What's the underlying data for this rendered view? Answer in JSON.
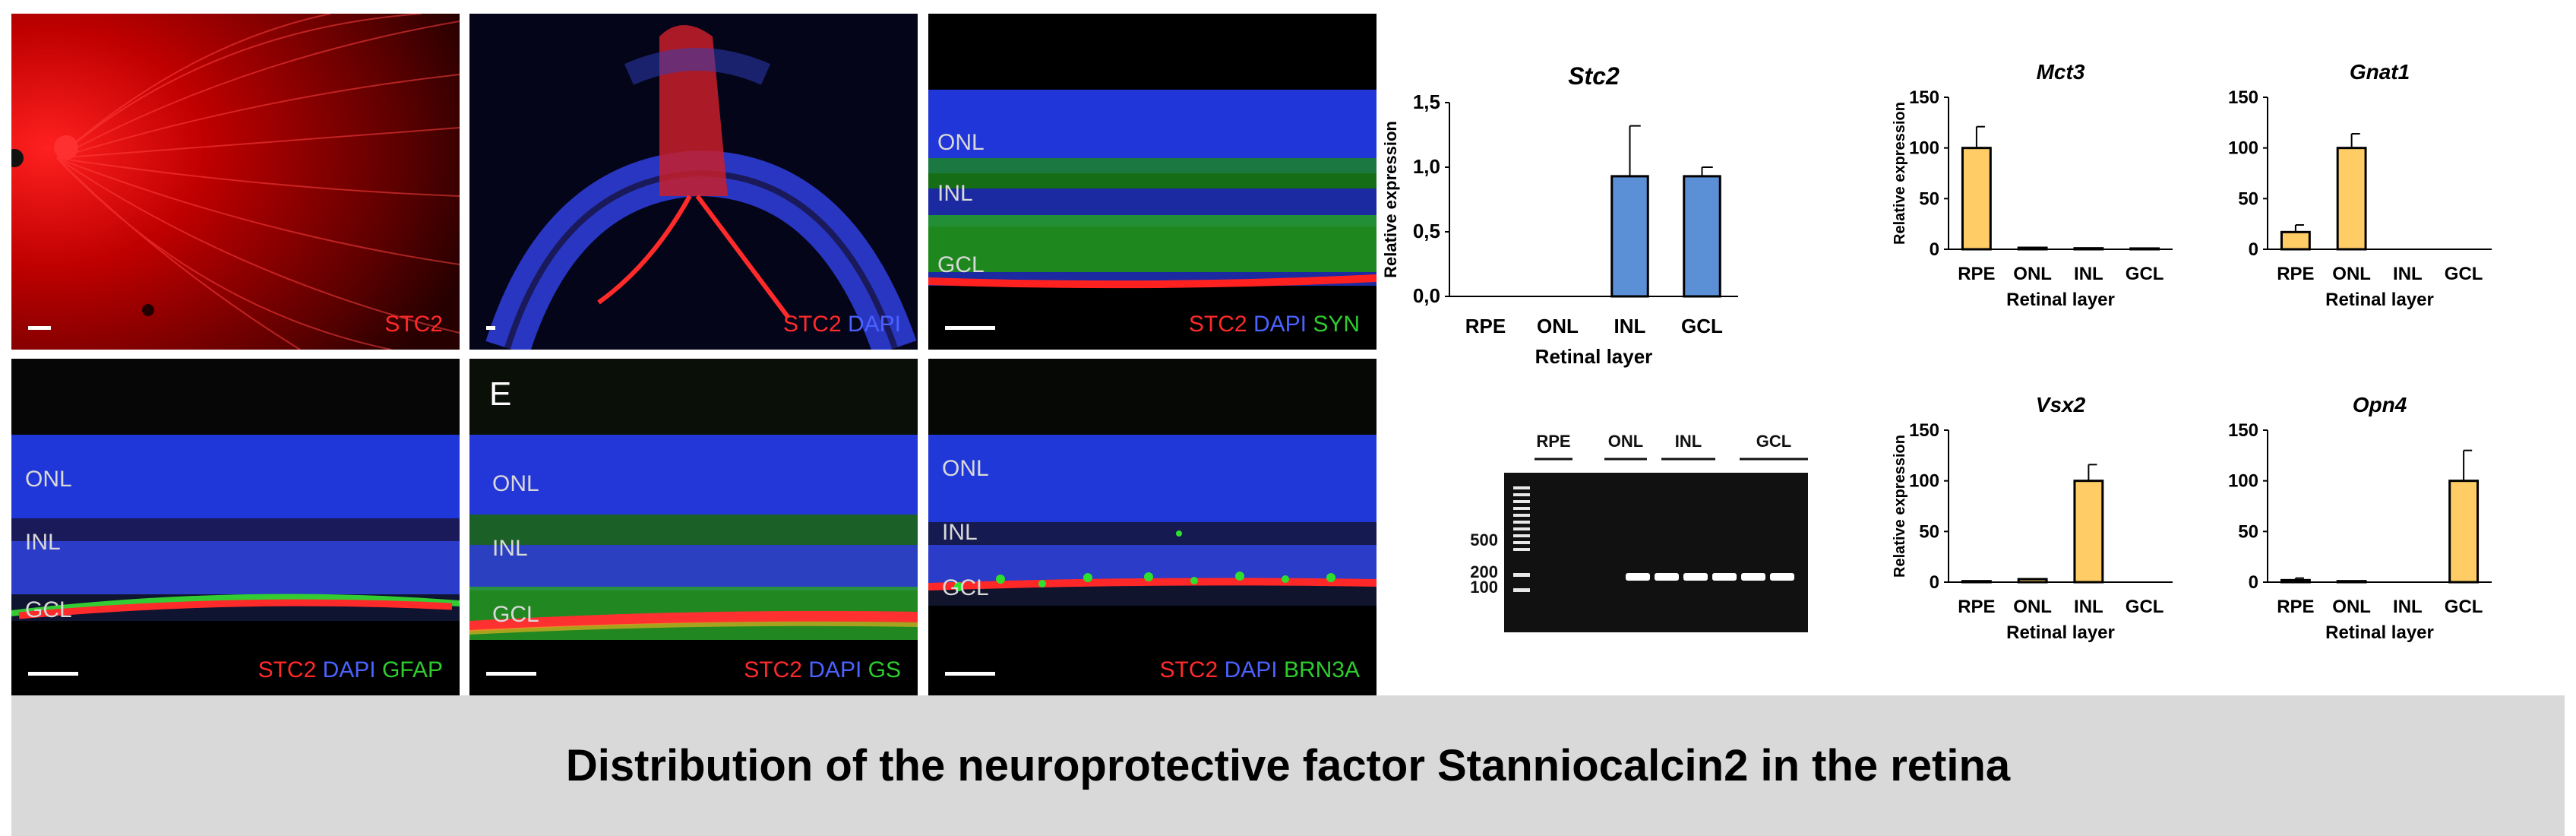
{
  "panels": {
    "a": {
      "legend": [
        {
          "text": "STC2",
          "color": "red"
        }
      ]
    },
    "b": {
      "legend": [
        {
          "text": "STC2",
          "color": "red"
        },
        {
          "text": "DAPI",
          "color": "blue"
        }
      ]
    },
    "c": {
      "layers": [
        "ONL",
        "INL",
        "GCL"
      ],
      "legend": [
        {
          "text": "STC2",
          "color": "red"
        },
        {
          "text": "DAPI",
          "color": "blue"
        },
        {
          "text": "SYN",
          "color": "green"
        }
      ]
    },
    "d": {
      "layers": [
        "ONL",
        "INL",
        "GCL"
      ],
      "legend": [
        {
          "text": "STC2",
          "color": "red"
        },
        {
          "text": "DAPI",
          "color": "blue"
        },
        {
          "text": "GFAP",
          "color": "green"
        }
      ]
    },
    "e": {
      "letter": "E",
      "layers": [
        "ONL",
        "INL",
        "GCL"
      ],
      "legend": [
        {
          "text": "STC2",
          "color": "red"
        },
        {
          "text": "DAPI",
          "color": "blue"
        },
        {
          "text": "GS",
          "color": "green"
        }
      ]
    },
    "f": {
      "layers": [
        "ONL",
        "INL",
        "GCL"
      ],
      "legend": [
        {
          "text": "STC2",
          "color": "red"
        },
        {
          "text": "DAPI",
          "color": "blue"
        },
        {
          "text": "BRN3A",
          "color": "green"
        }
      ]
    }
  },
  "gel": {
    "lanes": [
      "RPE",
      "ONL",
      "INL",
      "GCL"
    ],
    "ladder": [
      "500",
      "200",
      "100"
    ]
  },
  "chart_data": [
    {
      "type": "bar",
      "title": "Stc2",
      "xlabel": "Retinal layer",
      "ylabel": "Relative expression",
      "categories": [
        "RPE",
        "ONL",
        "INL",
        "GCL"
      ],
      "values": [
        0,
        0,
        0.93,
        0.93
      ],
      "errors": [
        0,
        0,
        0.39,
        0.07
      ],
      "ylim": [
        0,
        1.5
      ],
      "yticks": [
        "0,0",
        "0,5",
        "1,0",
        "1,5"
      ],
      "color": "#5b8fd6"
    },
    {
      "type": "bar",
      "title": "Mct3",
      "xlabel": "Retinal layer",
      "ylabel": "Relative expression",
      "categories": [
        "RPE",
        "ONL",
        "INL",
        "GCL"
      ],
      "values": [
        100,
        1.5,
        1,
        0.8
      ],
      "errors": [
        21,
        0,
        0,
        0
      ],
      "ylim": [
        0,
        150
      ],
      "yticks": [
        "0",
        "50",
        "100",
        "150"
      ],
      "color": "#ffcc66"
    },
    {
      "type": "bar",
      "title": "Gnat1",
      "xlabel": "Retinal layer",
      "ylabel": "",
      "categories": [
        "RPE",
        "ONL",
        "INL",
        "GCL"
      ],
      "values": [
        17,
        100,
        0,
        0
      ],
      "errors": [
        7,
        14,
        0,
        0
      ],
      "ylim": [
        0,
        150
      ],
      "yticks": [
        "0",
        "50",
        "100",
        "150"
      ],
      "color": "#ffcc66"
    },
    {
      "type": "bar",
      "title": "Vsx2",
      "xlabel": "Retinal layer",
      "ylabel": "Relative expression",
      "categories": [
        "RPE",
        "ONL",
        "INL",
        "GCL"
      ],
      "values": [
        1,
        3,
        100,
        0
      ],
      "errors": [
        0,
        0,
        16,
        0
      ],
      "ylim": [
        0,
        150
      ],
      "yticks": [
        "0",
        "50",
        "100",
        "150"
      ],
      "color": "#ffcc66"
    },
    {
      "type": "bar",
      "title": "Opn4",
      "xlabel": "Retinal layer",
      "ylabel": "",
      "categories": [
        "RPE",
        "ONL",
        "INL",
        "GCL"
      ],
      "values": [
        2,
        1,
        0,
        100
      ],
      "errors": [
        2,
        0,
        0,
        30
      ],
      "ylim": [
        0,
        150
      ],
      "yticks": [
        "0",
        "50",
        "100",
        "150"
      ],
      "color": "#ffcc66"
    }
  ],
  "banner": {
    "title": "Distribution of the neuroprotective factor Stanniocalcin2 in the retina"
  }
}
